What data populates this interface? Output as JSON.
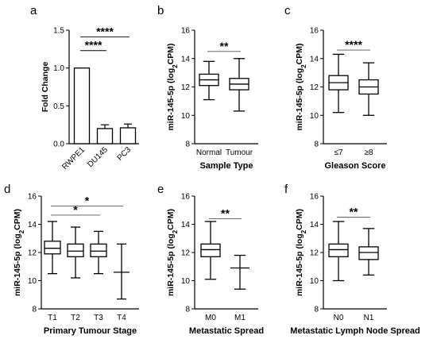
{
  "chart_data": [
    {
      "panel": "a",
      "type": "bar",
      "categories": [
        "RWPE1",
        "DU145",
        "PC3"
      ],
      "values": [
        1.0,
        0.2,
        0.21
      ],
      "errors": [
        0.0,
        0.05,
        0.05
      ],
      "ylabel": "Fold Change",
      "xlabel": "",
      "ylim": [
        0,
        1.5
      ],
      "yticks": [
        "0.0",
        "0.5",
        "1.0",
        "1.5"
      ],
      "significance": [
        {
          "from": 0,
          "to": 1,
          "label": "****"
        },
        {
          "from": 0,
          "to": 2,
          "label": "****"
        }
      ]
    },
    {
      "panel": "b",
      "type": "boxplot",
      "categories": [
        "Normal",
        "Tumour"
      ],
      "boxes": [
        {
          "min": 11.1,
          "q1": 12.1,
          "median": 12.5,
          "q3": 12.9,
          "max": 13.8
        },
        {
          "min": 10.3,
          "q1": 11.8,
          "median": 12.2,
          "q3": 12.6,
          "max": 14.0
        }
      ],
      "ylabel_main": "miR-145-5p (log",
      "ylabel_sub": "2",
      "ylabel_end": "CPM)",
      "xlabel": "Sample Type",
      "ylim": [
        8,
        16
      ],
      "yticks": [
        "8",
        "10",
        "12",
        "14",
        "16"
      ],
      "significance": [
        {
          "from": 0,
          "to": 1,
          "label": "**"
        }
      ]
    },
    {
      "panel": "c",
      "type": "boxplot",
      "categories": [
        "≤7",
        "≥8"
      ],
      "boxes": [
        {
          "min": 10.2,
          "q1": 11.8,
          "median": 12.3,
          "q3": 12.8,
          "max": 14.3
        },
        {
          "min": 10.0,
          "q1": 11.5,
          "median": 12.0,
          "q3": 12.5,
          "max": 13.7
        }
      ],
      "ylabel_main": "miR-145-5p (log",
      "ylabel_sub": "2",
      "ylabel_end": "CPM)",
      "xlabel": "Gleason Score",
      "ylim": [
        8,
        16
      ],
      "yticks": [
        "8",
        "10",
        "12",
        "14",
        "16"
      ],
      "significance": [
        {
          "from": 0,
          "to": 1,
          "label": "****"
        }
      ]
    },
    {
      "panel": "d",
      "type": "boxplot",
      "categories": [
        "T1",
        "T2",
        "T3",
        "T4"
      ],
      "boxes": [
        {
          "min": 10.5,
          "q1": 11.9,
          "median": 12.3,
          "q3": 12.8,
          "max": 14.2
        },
        {
          "min": 10.2,
          "q1": 11.7,
          "median": 12.1,
          "q3": 12.6,
          "max": 13.8
        },
        {
          "min": 10.5,
          "q1": 11.7,
          "median": 12.1,
          "q3": 12.6,
          "max": 13.5
        },
        {
          "min": 8.7,
          "q1": 10.6,
          "median": 10.6,
          "q3": 10.6,
          "max": 12.6
        }
      ],
      "ylabel_main": "miR-145-5p (log",
      "ylabel_sub": "2",
      "ylabel_end": "CPM)",
      "xlabel": "Primary Tumour Stage",
      "ylim": [
        8,
        16
      ],
      "yticks": [
        "8",
        "10",
        "12",
        "14",
        "16"
      ],
      "significance": [
        {
          "from": 0,
          "to": 2,
          "label": "*"
        },
        {
          "from": 0,
          "to": 3,
          "label": "*"
        }
      ]
    },
    {
      "panel": "e",
      "type": "boxplot",
      "categories": [
        "M0",
        "M1"
      ],
      "boxes": [
        {
          "min": 10.1,
          "q1": 11.7,
          "median": 12.2,
          "q3": 12.6,
          "max": 14.2
        },
        {
          "min": 9.4,
          "q1": 10.9,
          "median": 10.9,
          "q3": 10.9,
          "max": 11.8
        }
      ],
      "ylabel_main": "miR-145-5p (log",
      "ylabel_sub": "2",
      "ylabel_end": "CPM)",
      "xlabel": "Metastatic Spread",
      "ylim": [
        8,
        16
      ],
      "yticks": [
        "8",
        "10",
        "12",
        "14",
        "16"
      ],
      "significance": [
        {
          "from": 0,
          "to": 1,
          "label": "**"
        }
      ]
    },
    {
      "panel": "f",
      "type": "boxplot",
      "categories": [
        "N0",
        "N1"
      ],
      "boxes": [
        {
          "min": 10.0,
          "q1": 11.7,
          "median": 12.2,
          "q3": 12.6,
          "max": 14.2
        },
        {
          "min": 10.4,
          "q1": 11.5,
          "median": 12.0,
          "q3": 12.4,
          "max": 13.7
        }
      ],
      "ylabel_main": "miR-145-5p (log",
      "ylabel_sub": "2",
      "ylabel_end": "CPM)",
      "xlabel": "Metastatic Lymph Node Spread",
      "ylim": [
        8,
        16
      ],
      "yticks": [
        "8",
        "10",
        "12",
        "14",
        "16"
      ],
      "significance": [
        {
          "from": 0,
          "to": 1,
          "label": "**"
        }
      ]
    }
  ]
}
